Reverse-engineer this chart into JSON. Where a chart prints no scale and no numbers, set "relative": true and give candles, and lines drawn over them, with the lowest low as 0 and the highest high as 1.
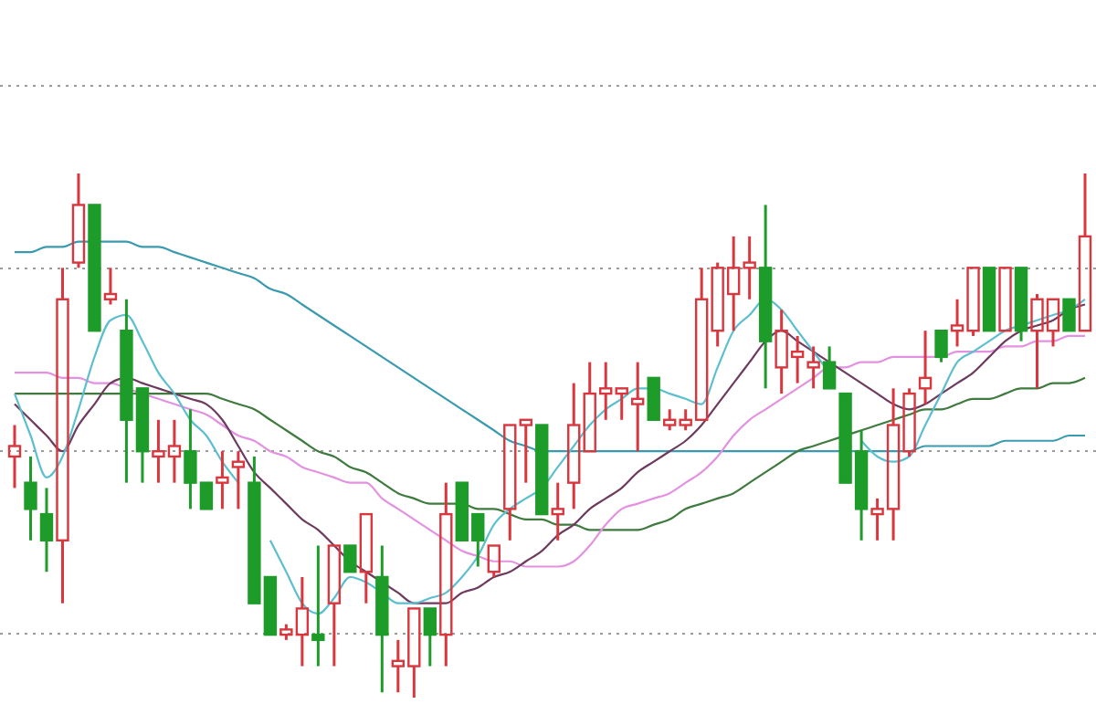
{
  "chart_data": {
    "type": "candlestick",
    "relative": true,
    "grid": true,
    "categories": [
      null,
      null,
      null,
      null,
      null,
      null,
      null,
      null,
      null,
      null,
      null,
      null,
      null,
      null,
      null,
      null,
      null,
      null,
      null,
      null,
      null,
      null,
      null,
      null,
      null,
      null,
      null,
      null,
      null,
      null,
      null,
      null,
      null,
      null,
      null,
      null,
      null,
      null,
      null,
      null,
      null,
      null,
      null,
      null,
      null,
      null,
      null,
      null,
      null,
      null,
      null,
      null,
      null,
      null,
      null,
      null,
      null,
      null,
      null,
      null,
      null,
      null,
      null,
      null,
      null,
      null,
      null,
      null
    ],
    "ohlc": [
      [
        0.46,
        0.52,
        0.4,
        0.48
      ],
      [
        0.41,
        0.46,
        0.3,
        0.36
      ],
      [
        0.35,
        0.4,
        0.24,
        0.3
      ],
      [
        0.3,
        0.82,
        0.18,
        0.76
      ],
      [
        0.83,
        1,
        0.82,
        0.94
      ],
      [
        0.94,
        0.94,
        0.7,
        0.7
      ],
      [
        0.76,
        0.82,
        0.75,
        0.77
      ],
      [
        0.7,
        0.76,
        0.41,
        0.53
      ],
      [
        0.59,
        0.59,
        0.41,
        0.47
      ],
      [
        0.46,
        0.53,
        0.41,
        0.47
      ],
      [
        0.46,
        0.53,
        0.41,
        0.48
      ],
      [
        0.47,
        0.55,
        0.36,
        0.41
      ],
      [
        0.41,
        0.41,
        0.36,
        0.36
      ],
      [
        0.41,
        0.47,
        0.36,
        0.42
      ],
      [
        0.44,
        0.47,
        0.36,
        0.45
      ],
      [
        0.41,
        0.46,
        0.18,
        0.18
      ],
      [
        0.23,
        0.23,
        0.12,
        0.12
      ],
      [
        0.12,
        0.14,
        0.11,
        0.13
      ],
      [
        0.12,
        0.23,
        0.06,
        0.17
      ],
      [
        0.12,
        0.29,
        0.06,
        0.11
      ],
      [
        0.18,
        0.29,
        0.06,
        0.29
      ],
      [
        0.29,
        0.29,
        0.24,
        0.24
      ],
      [
        0.24,
        0.35,
        0.18,
        0.35
      ],
      [
        0.23,
        0.29,
        0.01,
        0.12
      ],
      [
        0.06,
        0.11,
        0.01,
        0.07
      ],
      [
        0.06,
        0.17,
        0,
        0.17
      ],
      [
        0.17,
        0.17,
        0.06,
        0.12
      ],
      [
        0.12,
        0.41,
        0.06,
        0.35
      ],
      [
        0.41,
        0.41,
        0.3,
        0.3
      ],
      [
        0.35,
        0.35,
        0.25,
        0.3
      ],
      [
        0.24,
        0.29,
        0.23,
        0.29
      ],
      [
        0.36,
        0.52,
        0.3,
        0.52
      ],
      [
        0.52,
        0.53,
        0.41,
        0.53
      ],
      [
        0.52,
        0.52,
        0.35,
        0.35
      ],
      [
        0.35,
        0.41,
        0.3,
        0.36
      ],
      [
        0.41,
        0.6,
        0.36,
        0.52
      ],
      [
        0.47,
        0.64,
        0.47,
        0.58
      ],
      [
        0.58,
        0.64,
        0.53,
        0.59
      ],
      [
        0.58,
        0.59,
        0.53,
        0.59
      ],
      [
        0.56,
        0.64,
        0.47,
        0.57
      ],
      [
        0.61,
        0.61,
        0.53,
        0.53
      ],
      [
        0.52,
        0.55,
        0.51,
        0.53
      ],
      [
        0.52,
        0.55,
        0.51,
        0.53
      ],
      [
        0.53,
        0.82,
        0.53,
        0.76
      ],
      [
        0.7,
        0.83,
        0.67,
        0.82
      ],
      [
        0.77,
        0.88,
        0.7,
        0.82
      ],
      [
        0.82,
        0.88,
        0.76,
        0.83
      ],
      [
        0.82,
        0.94,
        0.59,
        0.68
      ],
      [
        0.63,
        0.74,
        0.58,
        0.7
      ],
      [
        0.65,
        0.69,
        0.6,
        0.66
      ],
      [
        0.63,
        0.67,
        0.59,
        0.64
      ],
      [
        0.64,
        0.67,
        0.59,
        0.59
      ],
      [
        0.58,
        0.58,
        0.41,
        0.41
      ],
      [
        0.47,
        0.51,
        0.3,
        0.36
      ],
      [
        0.35,
        0.38,
        0.3,
        0.36
      ],
      [
        0.36,
        0.59,
        0.3,
        0.52
      ],
      [
        0.47,
        0.59,
        0.46,
        0.58
      ],
      [
        0.59,
        0.7,
        0.56,
        0.61
      ],
      [
        0.7,
        0.7,
        0.64,
        0.65
      ],
      [
        0.7,
        0.76,
        0.67,
        0.71
      ],
      [
        0.7,
        0.82,
        0.69,
        0.82
      ],
      [
        0.82,
        0.82,
        0.7,
        0.7
      ],
      [
        0.7,
        0.82,
        0.7,
        0.82
      ],
      [
        0.82,
        0.82,
        0.68,
        0.7
      ],
      [
        0.7,
        0.77,
        0.59,
        0.76
      ],
      [
        0.7,
        0.76,
        0.67,
        0.76
      ],
      [
        0.76,
        0.76,
        0.7,
        0.7
      ],
      [
        0.7,
        1,
        0.7,
        0.88
      ]
    ],
    "series": [
      {
        "type": "line",
        "color": "#3a9ab0",
        "values": [
          0.85,
          0.85,
          0.86,
          0.86,
          0.87,
          0.87,
          0.87,
          0.87,
          0.86,
          0.86,
          0.85,
          0.84,
          0.83,
          0.82,
          0.81,
          0.8,
          0.78,
          0.77,
          0.75,
          0.73,
          0.71,
          0.69,
          0.67,
          0.65,
          0.63,
          0.61,
          0.59,
          0.57,
          0.55,
          0.53,
          0.51,
          0.49,
          0.48,
          0.47,
          0.47,
          0.47,
          0.47,
          0.47,
          0.47,
          0.47,
          0.47,
          0.47,
          0.47,
          0.47,
          0.47,
          0.47,
          0.47,
          0.47,
          0.47,
          0.47,
          0.47,
          0.47,
          0.47,
          0.47,
          0.47,
          0.47,
          0.47,
          0.48,
          0.48,
          0.48,
          0.48,
          0.48,
          0.49,
          0.49,
          0.49,
          0.49,
          0.5,
          0.5
        ]
      },
      {
        "type": "line",
        "color": "#3f7a3f",
        "values": [
          0.58,
          0.58,
          0.58,
          0.58,
          0.58,
          0.58,
          0.58,
          0.58,
          0.58,
          0.58,
          0.58,
          0.58,
          0.58,
          0.57,
          0.56,
          0.55,
          0.53,
          0.51,
          0.49,
          0.47,
          0.46,
          0.44,
          0.43,
          0.41,
          0.39,
          0.38,
          0.37,
          0.37,
          0.37,
          0.36,
          0.36,
          0.35,
          0.34,
          0.34,
          0.33,
          0.33,
          0.32,
          0.32,
          0.32,
          0.32,
          0.33,
          0.34,
          0.36,
          0.37,
          0.38,
          0.39,
          0.41,
          0.43,
          0.45,
          0.47,
          0.48,
          0.49,
          0.5,
          0.51,
          0.52,
          0.53,
          0.54,
          0.55,
          0.55,
          0.56,
          0.57,
          0.57,
          0.58,
          0.59,
          0.59,
          0.6,
          0.6,
          0.61
        ]
      },
      {
        "type": "line",
        "color": "#e391e0",
        "values": [
          0.62,
          0.62,
          0.62,
          0.61,
          0.61,
          0.6,
          0.6,
          0.59,
          0.58,
          0.57,
          0.56,
          0.55,
          0.54,
          0.52,
          0.5,
          0.49,
          0.47,
          0.46,
          0.44,
          0.43,
          0.42,
          0.41,
          0.41,
          0.38,
          0.36,
          0.34,
          0.32,
          0.3,
          0.28,
          0.27,
          0.26,
          0.26,
          0.25,
          0.25,
          0.25,
          0.26,
          0.29,
          0.33,
          0.36,
          0.37,
          0.38,
          0.39,
          0.41,
          0.43,
          0.46,
          0.5,
          0.53,
          0.55,
          0.57,
          0.59,
          0.61,
          0.63,
          0.63,
          0.64,
          0.64,
          0.65,
          0.65,
          0.65,
          0.65,
          0.66,
          0.66,
          0.66,
          0.67,
          0.67,
          0.68,
          0.68,
          0.69,
          0.69
        ]
      },
      {
        "type": "line",
        "color": "#6e3a5e",
        "values": [
          0.56,
          0.53,
          0.5,
          0.47,
          0.52,
          0.56,
          0.6,
          0.61,
          0.6,
          0.59,
          0.58,
          0.57,
          0.56,
          0.53,
          0.48,
          0.43,
          0.4,
          0.37,
          0.34,
          0.32,
          0.29,
          0.26,
          0.24,
          0.22,
          0.2,
          0.18,
          0.18,
          0.18,
          0.2,
          0.21,
          0.23,
          0.24,
          0.26,
          0.28,
          0.31,
          0.33,
          0.36,
          0.38,
          0.4,
          0.43,
          0.45,
          0.47,
          0.49,
          0.52,
          0.56,
          0.6,
          0.64,
          0.68,
          0.7,
          0.68,
          0.66,
          0.64,
          0.62,
          0.6,
          0.58,
          0.56,
          0.55,
          0.56,
          0.58,
          0.6,
          0.62,
          0.65,
          0.68,
          0.7,
          0.71,
          0.72,
          0.74,
          0.75
        ]
      },
      {
        "type": "line",
        "color": "#5cbfd0",
        "values": [
          0.58,
          0.5,
          0.42,
          0.46,
          0.55,
          0.65,
          0.72,
          0.73,
          0.68,
          0.62,
          0.58,
          0.53,
          0.5,
          0.45,
          0.41,
          null,
          0.3,
          0.24,
          0.18,
          0.16,
          0.19,
          0.23,
          0.22,
          0.2,
          0.18,
          0.18,
          0.19,
          0.2,
          0.23,
          0.27,
          0.33,
          0.36,
          0.38,
          0.4,
          0.44,
          0.48,
          0.52,
          0.55,
          0.57,
          0.59,
          0.59,
          0.58,
          0.57,
          0.56,
          0.63,
          0.7,
          0.73,
          0.76,
          0.74,
          0.7,
          0.66,
          0.62,
          null,
          0.49,
          0.46,
          0.45,
          0.46,
          0.52,
          0.58,
          0.64,
          0.66,
          0.68,
          0.7,
          0.71,
          0.72,
          0.73,
          0.74,
          0.76
        ]
      }
    ]
  }
}
